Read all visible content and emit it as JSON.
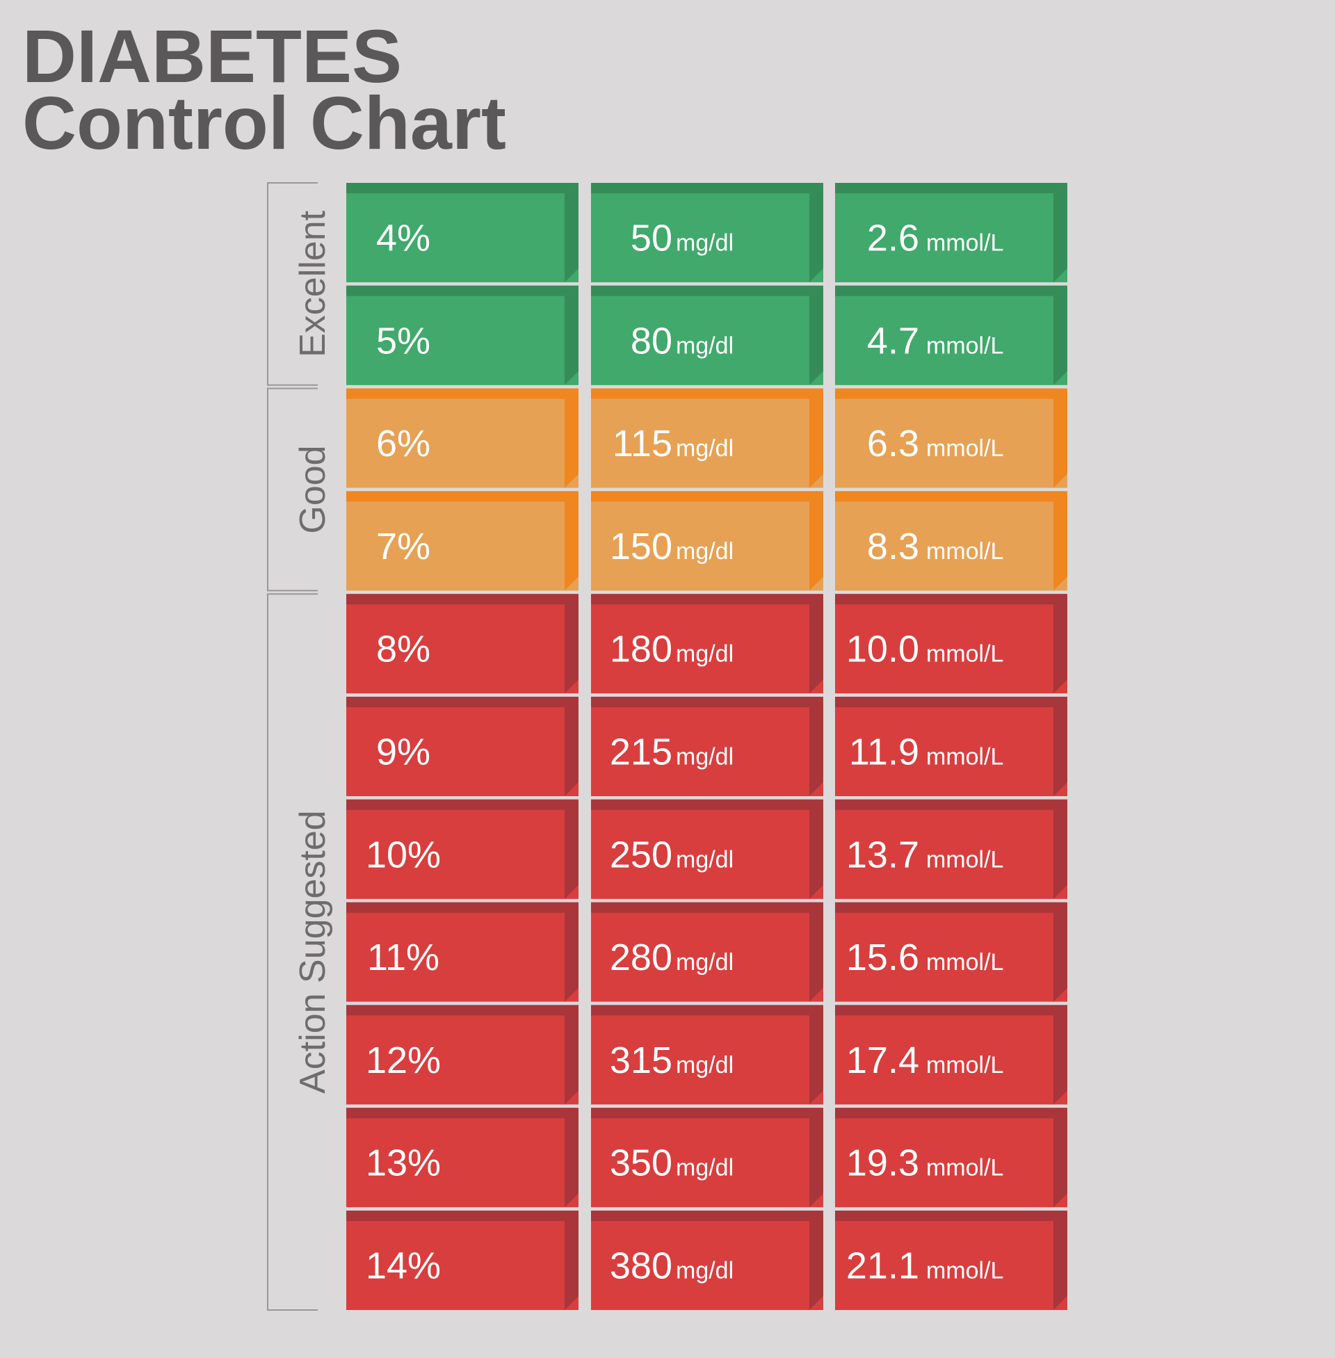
{
  "title": {
    "line1": "DIABETES",
    "line2": "Control Chart"
  },
  "units": {
    "mgdl": "mg/dl",
    "mmol": "mmol/L"
  },
  "groups": [
    {
      "label": "Excellent",
      "rows": [
        {
          "a1c": "4%",
          "mgdl": "50",
          "mmol": "2.6"
        },
        {
          "a1c": "5%",
          "mgdl": "80",
          "mmol": "4.7"
        }
      ]
    },
    {
      "label": "Good",
      "rows": [
        {
          "a1c": "6%",
          "mgdl": "115",
          "mmol": "6.3"
        },
        {
          "a1c": "7%",
          "mgdl": "150",
          "mmol": "8.3"
        }
      ]
    },
    {
      "label": "Action Suggested",
      "rows": [
        {
          "a1c": "8%",
          "mgdl": "180",
          "mmol": "10.0"
        },
        {
          "a1c": "9%",
          "mgdl": "215",
          "mmol": "11.9"
        },
        {
          "a1c": "10%",
          "mgdl": "250",
          "mmol": "13.7"
        },
        {
          "a1c": "11%",
          "mgdl": "280",
          "mmol": "15.6"
        },
        {
          "a1c": "12%",
          "mgdl": "315",
          "mmol": "17.4"
        },
        {
          "a1c": "13%",
          "mgdl": "350",
          "mmol": "19.3"
        },
        {
          "a1c": "14%",
          "mgdl": "380",
          "mmol": "21.1"
        }
      ]
    }
  ]
}
